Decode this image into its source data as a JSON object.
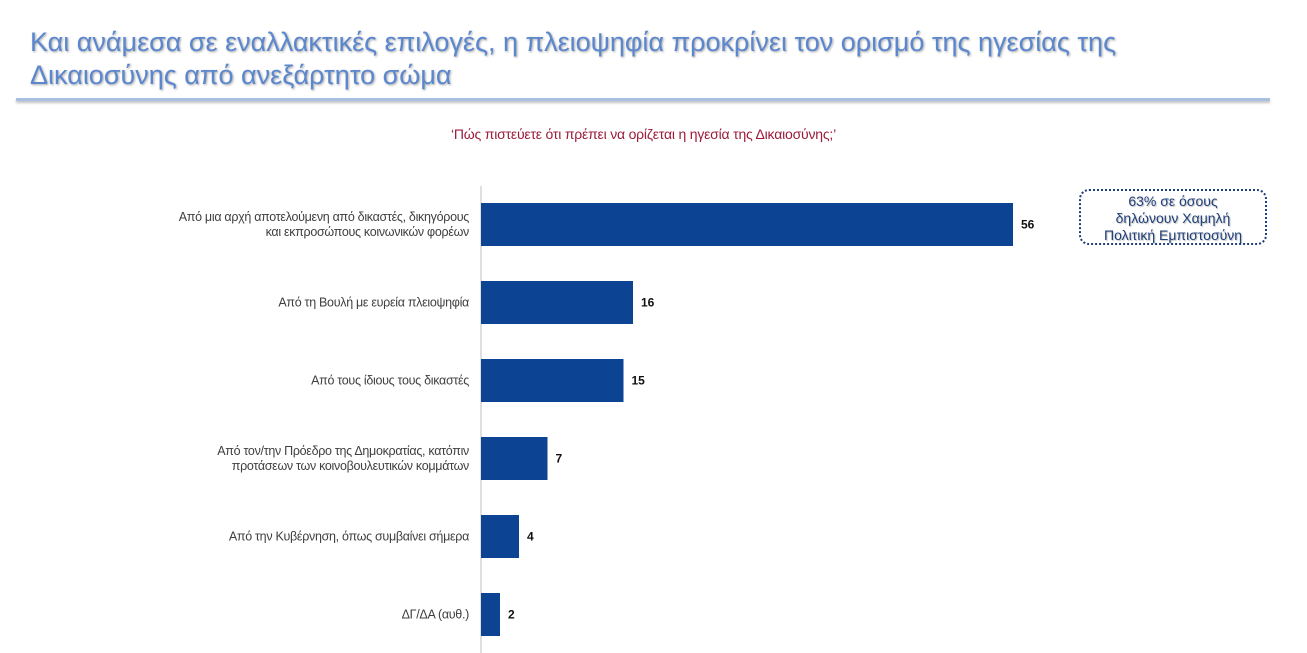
{
  "title": "Και ανάμεσα σε εναλλακτικές επιλογές, η πλειοψηφία προκρίνει τον ορισμό της ηγεσίας της Δικαιοσύνης από ανεξάρτητο σώμα",
  "question": "‘Πώς πιστεύετε ότι πρέπει να ορίζεται η ηγεσία της Δικαιοσύνης;’",
  "callout": {
    "line1": "63% σε όσους",
    "line2": "δηλώνουν Χαμηλή",
    "line3": "Πολιτική Εμπιστοσύνη"
  },
  "colors": {
    "bar": "#0d4393",
    "title": "#5b87cf",
    "question": "#9b1b3a",
    "callout_border": "#1f3f7a"
  },
  "chart_data": {
    "type": "bar",
    "orientation": "horizontal",
    "categories": [
      [
        "Από μια αρχή αποτελούμενη από δικαστές, δικηγόρους",
        "και εκπροσώπους κοινωνικών φορέων"
      ],
      [
        "Από τη Βουλή με ευρεία πλειοψηφία"
      ],
      [
        "Από τους ίδιους τους δικαστές"
      ],
      [
        "Από τον/την Πρόεδρο της Δημοκρατίας, κατόπιν",
        "προτάσεων των κοινοβουλευτικών κομμάτων"
      ],
      [
        "Από την Κυβέρνηση, όπως συμβαίνει σήμερα"
      ],
      [
        "ΔΓ/ΔΑ (αυθ.)"
      ]
    ],
    "values": [
      56,
      16,
      15,
      7,
      4,
      2
    ],
    "data_labels": [
      "56",
      "16",
      "15",
      "7",
      "4",
      "2"
    ],
    "xlim": [
      0,
      56
    ],
    "grid": false,
    "legend": "none"
  }
}
